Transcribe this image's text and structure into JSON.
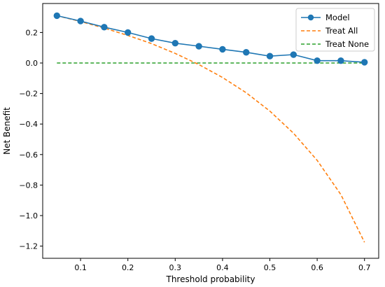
{
  "chart_data": {
    "type": "line",
    "title": "",
    "xlabel": "Threshold probability",
    "ylabel": "Net Benefit",
    "xlim": [
      0.02,
      0.73
    ],
    "ylim": [
      -1.28,
      0.39
    ],
    "x_ticks": [
      0.1,
      0.2,
      0.3,
      0.4,
      0.5,
      0.6,
      0.7
    ],
    "x_tick_labels": [
      "0.1",
      "0.2",
      "0.3",
      "0.4",
      "0.5",
      "0.6",
      "0.7"
    ],
    "y_ticks": [
      0.2,
      0.0,
      -0.2,
      -0.4,
      -0.6,
      -0.8,
      -1.0,
      -1.2
    ],
    "y_tick_labels": [
      "0.2",
      "0.0",
      "−0.2",
      "−0.4",
      "−0.6",
      "−0.8",
      "−1.0",
      "−1.2"
    ],
    "grid": false,
    "legend_position": "top-right",
    "series": [
      {
        "name": "Model",
        "color": "#1f77b4",
        "style": "solid",
        "marker": "circle",
        "x": [
          0.05,
          0.1,
          0.15,
          0.2,
          0.25,
          0.3,
          0.35,
          0.4,
          0.45,
          0.5,
          0.55,
          0.6,
          0.65,
          0.7
        ],
        "y": [
          0.31,
          0.275,
          0.235,
          0.2,
          0.16,
          0.13,
          0.11,
          0.09,
          0.07,
          0.045,
          0.055,
          0.015,
          0.015,
          0.005
        ]
      },
      {
        "name": "Treat All",
        "color": "#ff7f0e",
        "style": "dashed",
        "marker": "none",
        "x": [
          0.05,
          0.1,
          0.15,
          0.2,
          0.25,
          0.3,
          0.35,
          0.4,
          0.45,
          0.5,
          0.55,
          0.6,
          0.65,
          0.7
        ],
        "y": [
          0.31,
          0.272,
          0.229,
          0.181,
          0.127,
          0.063,
          -0.01,
          -0.095,
          -0.195,
          -0.315,
          -0.46,
          -0.638,
          -0.862,
          -1.175
        ]
      },
      {
        "name": "Treat None",
        "color": "#2ca02c",
        "style": "dashed",
        "marker": "none",
        "x": [
          0.05,
          0.7
        ],
        "y": [
          0.0,
          0.0
        ]
      }
    ]
  }
}
